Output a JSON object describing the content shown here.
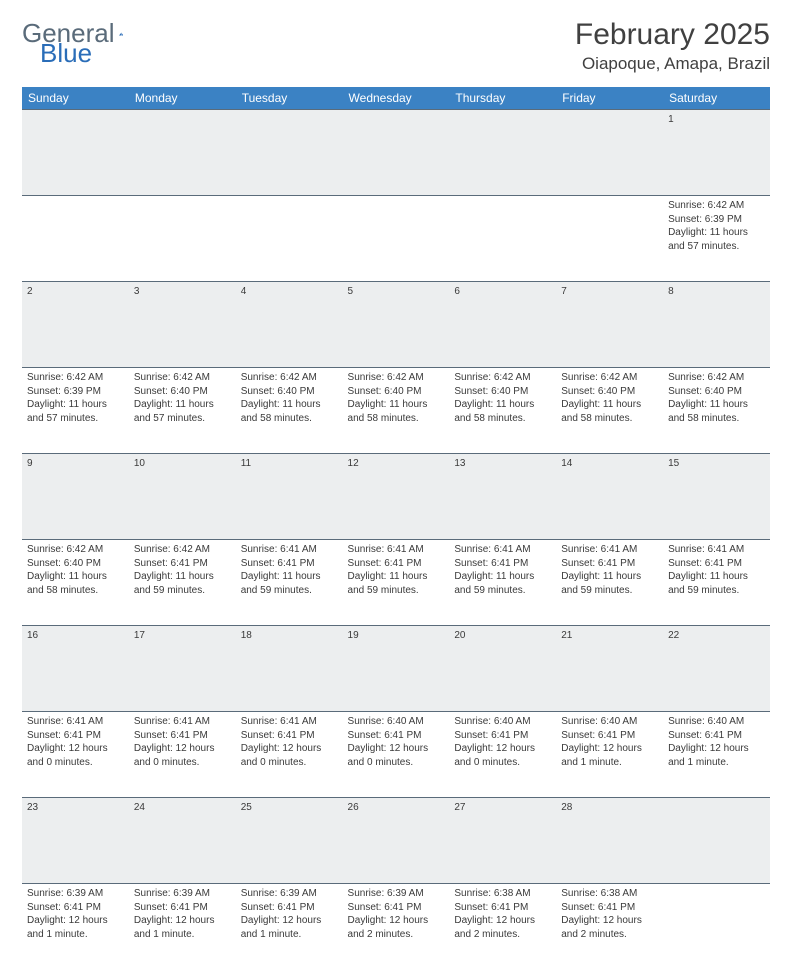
{
  "logo": {
    "general": "General",
    "blue": "Blue"
  },
  "title": "February 2025",
  "location": "Oiapoque, Amapa, Brazil",
  "colors": {
    "header_bg": "#3b82c4",
    "header_text": "#ffffff",
    "daynum_bg": "#eceeef",
    "rule": "#5a6b7a",
    "text": "#3a3a3a",
    "logo_gray": "#5a6b7a",
    "logo_blue": "#2a6db8"
  },
  "day_headers": [
    "Sunday",
    "Monday",
    "Tuesday",
    "Wednesday",
    "Thursday",
    "Friday",
    "Saturday"
  ],
  "weeks": [
    [
      null,
      null,
      null,
      null,
      null,
      null,
      {
        "n": "1",
        "sunrise": "6:42 AM",
        "sunset": "6:39 PM",
        "daylight": "11 hours and 57 minutes."
      }
    ],
    [
      {
        "n": "2",
        "sunrise": "6:42 AM",
        "sunset": "6:39 PM",
        "daylight": "11 hours and 57 minutes."
      },
      {
        "n": "3",
        "sunrise": "6:42 AM",
        "sunset": "6:40 PM",
        "daylight": "11 hours and 57 minutes."
      },
      {
        "n": "4",
        "sunrise": "6:42 AM",
        "sunset": "6:40 PM",
        "daylight": "11 hours and 58 minutes."
      },
      {
        "n": "5",
        "sunrise": "6:42 AM",
        "sunset": "6:40 PM",
        "daylight": "11 hours and 58 minutes."
      },
      {
        "n": "6",
        "sunrise": "6:42 AM",
        "sunset": "6:40 PM",
        "daylight": "11 hours and 58 minutes."
      },
      {
        "n": "7",
        "sunrise": "6:42 AM",
        "sunset": "6:40 PM",
        "daylight": "11 hours and 58 minutes."
      },
      {
        "n": "8",
        "sunrise": "6:42 AM",
        "sunset": "6:40 PM",
        "daylight": "11 hours and 58 minutes."
      }
    ],
    [
      {
        "n": "9",
        "sunrise": "6:42 AM",
        "sunset": "6:40 PM",
        "daylight": "11 hours and 58 minutes."
      },
      {
        "n": "10",
        "sunrise": "6:42 AM",
        "sunset": "6:41 PM",
        "daylight": "11 hours and 59 minutes."
      },
      {
        "n": "11",
        "sunrise": "6:41 AM",
        "sunset": "6:41 PM",
        "daylight": "11 hours and 59 minutes."
      },
      {
        "n": "12",
        "sunrise": "6:41 AM",
        "sunset": "6:41 PM",
        "daylight": "11 hours and 59 minutes."
      },
      {
        "n": "13",
        "sunrise": "6:41 AM",
        "sunset": "6:41 PM",
        "daylight": "11 hours and 59 minutes."
      },
      {
        "n": "14",
        "sunrise": "6:41 AM",
        "sunset": "6:41 PM",
        "daylight": "11 hours and 59 minutes."
      },
      {
        "n": "15",
        "sunrise": "6:41 AM",
        "sunset": "6:41 PM",
        "daylight": "11 hours and 59 minutes."
      }
    ],
    [
      {
        "n": "16",
        "sunrise": "6:41 AM",
        "sunset": "6:41 PM",
        "daylight": "12 hours and 0 minutes."
      },
      {
        "n": "17",
        "sunrise": "6:41 AM",
        "sunset": "6:41 PM",
        "daylight": "12 hours and 0 minutes."
      },
      {
        "n": "18",
        "sunrise": "6:41 AM",
        "sunset": "6:41 PM",
        "daylight": "12 hours and 0 minutes."
      },
      {
        "n": "19",
        "sunrise": "6:40 AM",
        "sunset": "6:41 PM",
        "daylight": "12 hours and 0 minutes."
      },
      {
        "n": "20",
        "sunrise": "6:40 AM",
        "sunset": "6:41 PM",
        "daylight": "12 hours and 0 minutes."
      },
      {
        "n": "21",
        "sunrise": "6:40 AM",
        "sunset": "6:41 PM",
        "daylight": "12 hours and 1 minute."
      },
      {
        "n": "22",
        "sunrise": "6:40 AM",
        "sunset": "6:41 PM",
        "daylight": "12 hours and 1 minute."
      }
    ],
    [
      {
        "n": "23",
        "sunrise": "6:39 AM",
        "sunset": "6:41 PM",
        "daylight": "12 hours and 1 minute."
      },
      {
        "n": "24",
        "sunrise": "6:39 AM",
        "sunset": "6:41 PM",
        "daylight": "12 hours and 1 minute."
      },
      {
        "n": "25",
        "sunrise": "6:39 AM",
        "sunset": "6:41 PM",
        "daylight": "12 hours and 1 minute."
      },
      {
        "n": "26",
        "sunrise": "6:39 AM",
        "sunset": "6:41 PM",
        "daylight": "12 hours and 2 minutes."
      },
      {
        "n": "27",
        "sunrise": "6:38 AM",
        "sunset": "6:41 PM",
        "daylight": "12 hours and 2 minutes."
      },
      {
        "n": "28",
        "sunrise": "6:38 AM",
        "sunset": "6:41 PM",
        "daylight": "12 hours and 2 minutes."
      },
      null
    ]
  ],
  "labels": {
    "sunrise": "Sunrise: ",
    "sunset": "Sunset: ",
    "daylight": "Daylight: "
  }
}
